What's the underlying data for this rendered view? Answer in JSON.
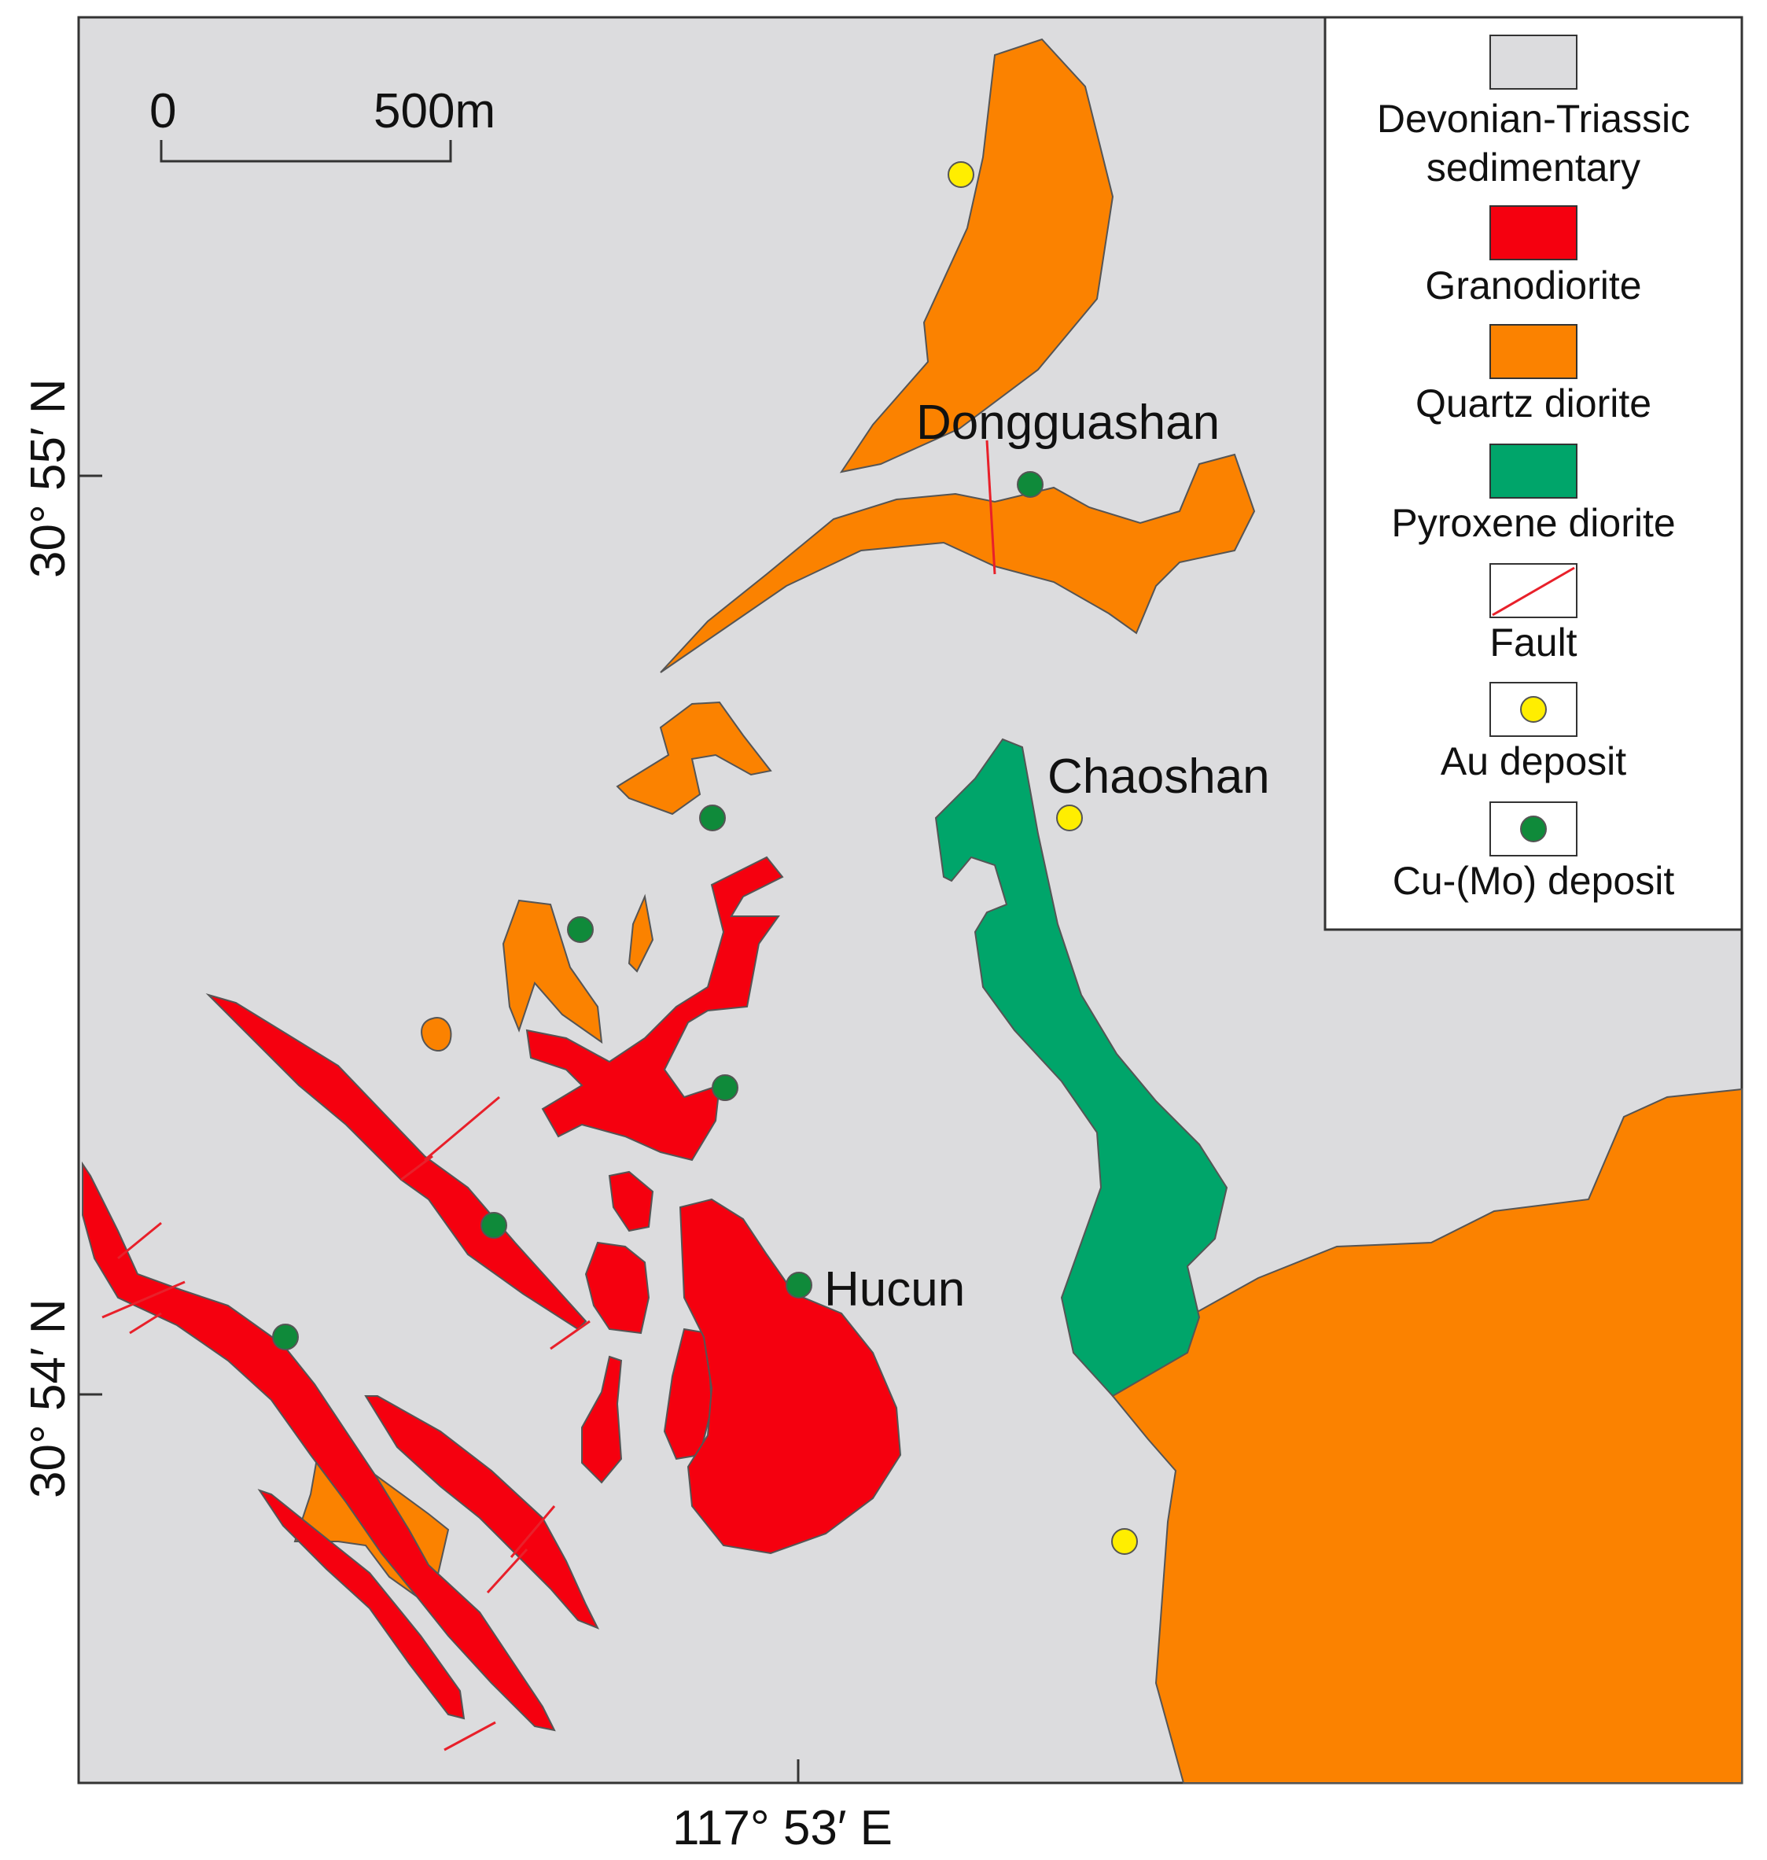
{
  "scale_bar": {
    "start_label": "0",
    "end_label": "500m"
  },
  "places": {
    "dongguashan": "Dongguashan",
    "chaoshan": "Chaoshan",
    "hucun": "Hucun"
  },
  "coordinates": {
    "lat_upper": "30° 55′ N",
    "lat_lower": "30° 54′ N",
    "lon": "117° 53′ E"
  },
  "legend": {
    "sedimentary_line1": "Devonian-Triassic",
    "sedimentary_line2": "sedimentary",
    "granodiorite": "Granodiorite",
    "quartz_diorite": "Quartz diorite",
    "pyroxene_diorite": "Pyroxene diorite",
    "fault": "Fault",
    "au_deposit": "Au deposit",
    "cu_mo_deposit": "Cu-(Mo) deposit"
  },
  "colors": {
    "sedimentary": "#dcdcde",
    "granodiorite": "#f5000f",
    "quartz_diorite": "#fb8200",
    "pyroxene_diorite": "#00a56a",
    "fault": "#e8202a",
    "au_deposit": "#ffee00",
    "cu_mo_deposit": "#0f8a3a"
  }
}
